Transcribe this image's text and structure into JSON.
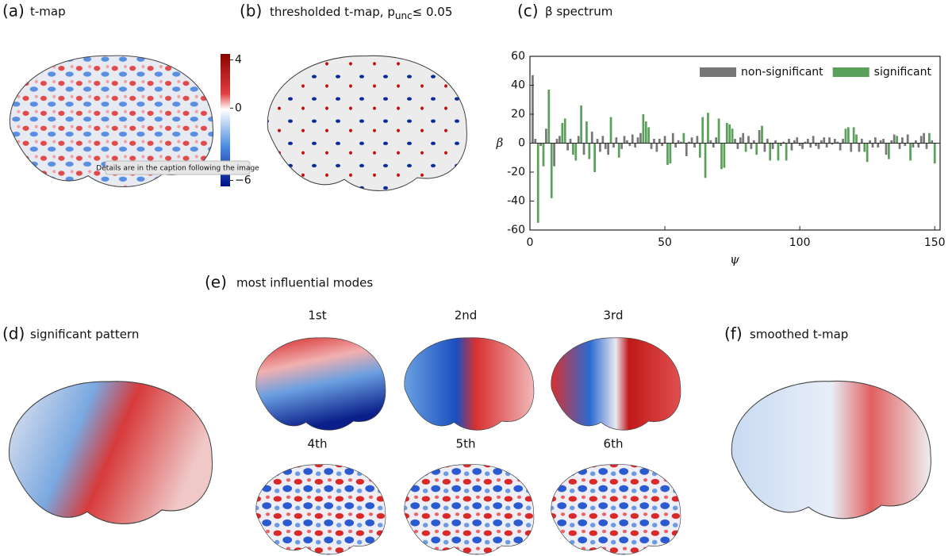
{
  "panels": {
    "a": {
      "label": "(a)",
      "title": "t-map",
      "clim": [
        -6.5,
        4.5
      ],
      "colorbar_ticks": [
        4,
        0,
        {
          "value": -6,
          "label": "−6"
        }
      ],
      "tooltip": "Details are in the caption following the image"
    },
    "b": {
      "label": "(b)",
      "title": "thresholded t-map, p",
      "title_sub": "unc",
      "title_rest": "≤ 0.05"
    },
    "d": {
      "label": "(d)",
      "title": "significant pattern"
    },
    "e": {
      "label": "(e)",
      "title": "most influential modes",
      "modes": [
        "1st",
        "2nd",
        "3rd",
        "4th",
        "5th",
        "6th"
      ]
    },
    "f": {
      "label": "(f)",
      "title": "smoothed t-map"
    }
  },
  "chart_data": {
    "type": "bar",
    "panel_label": "(c)",
    "title": "β spectrum",
    "x_label": "ψ",
    "y_label": "β",
    "xlim": [
      0,
      152
    ],
    "ylim": [
      -60,
      60
    ],
    "xticks": [
      0,
      50,
      100,
      150
    ],
    "yticks": [
      -60,
      -40,
      -20,
      0,
      20,
      40,
      60
    ],
    "legend": "upper right",
    "x": [
      1,
      2,
      3,
      4,
      5,
      6,
      7,
      8,
      9,
      10,
      11,
      12,
      13,
      14,
      15,
      16,
      17,
      18,
      19,
      20,
      21,
      22,
      23,
      24,
      25,
      26,
      27,
      28,
      29,
      30,
      31,
      32,
      33,
      34,
      35,
      36,
      37,
      38,
      39,
      40,
      41,
      42,
      43,
      44,
      45,
      46,
      47,
      48,
      49,
      50,
      51,
      52,
      53,
      54,
      55,
      56,
      57,
      58,
      59,
      60,
      61,
      62,
      63,
      64,
      65,
      66,
      67,
      68,
      69,
      70,
      71,
      72,
      73,
      74,
      75,
      76,
      77,
      78,
      79,
      80,
      81,
      82,
      83,
      84,
      85,
      86,
      87,
      88,
      89,
      90,
      91,
      92,
      93,
      94,
      95,
      96,
      97,
      98,
      99,
      100,
      101,
      102,
      103,
      104,
      105,
      106,
      107,
      108,
      109,
      110,
      111,
      112,
      113,
      114,
      115,
      116,
      117,
      118,
      119,
      120,
      121,
      122,
      123,
      124,
      125,
      126,
      127,
      128,
      129,
      130,
      131,
      132,
      133,
      134,
      135,
      136,
      137,
      138,
      139,
      140,
      141,
      142,
      143,
      144,
      145,
      146,
      147,
      148,
      149,
      150
    ],
    "series": [
      {
        "name": "non-significant",
        "color": "#777777",
        "values": [
          47,
          3,
          null,
          -2,
          null,
          10,
          null,
          null,
          -16,
          3,
          5,
          null,
          null,
          -5,
          3,
          null,
          null,
          5,
          null,
          -8,
          null,
          null,
          8,
          null,
          3,
          -6,
          5,
          -4,
          -8,
          null,
          -3,
          4,
          null,
          -4,
          5,
          2,
          -2,
          6,
          -3,
          4,
          7,
          null,
          null,
          null,
          -4,
          3,
          -6,
          3,
          -2,
          5,
          null,
          null,
          7,
          -3,
          2,
          1,
          null,
          -9,
          1,
          4,
          -3,
          5,
          null,
          null,
          null,
          null,
          2,
          -3,
          4,
          null,
          null,
          null,
          null,
          null,
          null,
          3,
          -4,
          4,
          7,
          null,
          5,
          -4,
          2,
          null,
          9,
          null,
          -6,
          3,
          null,
          -4,
          2,
          null,
          -2,
          1,
          null,
          3,
          -5,
          2,
          4,
          -2,
          -4,
          1,
          3,
          -3,
          5,
          -2,
          -4,
          2,
          4,
          -3,
          4,
          -1,
          3,
          1,
          -5,
          3,
          null,
          null,
          -6,
          null,
          null,
          -6,
          3,
          null,
          null,
          2,
          -3,
          4,
          -3,
          2,
          3,
          -8,
          null,
          2,
          6,
          null,
          -4,
          4,
          -2,
          6,
          null,
          -3,
          2,
          -3,
          5,
          7,
          -4,
          null,
          2,
          null
        ]
      },
      {
        "name": "significant",
        "color": "#5aa05a",
        "values": [
          null,
          null,
          -55,
          null,
          -16,
          null,
          37,
          -38,
          null,
          null,
          null,
          14,
          17,
          null,
          null,
          -8,
          -12,
          null,
          26,
          null,
          15,
          -11,
          null,
          -20,
          null,
          null,
          null,
          null,
          null,
          18,
          null,
          null,
          -10,
          null,
          null,
          null,
          null,
          null,
          null,
          null,
          null,
          20,
          15,
          11,
          null,
          null,
          null,
          null,
          null,
          null,
          -15,
          -14,
          null,
          null,
          null,
          null,
          7,
          null,
          null,
          null,
          null,
          null,
          -10,
          18,
          -24,
          21,
          null,
          null,
          null,
          17,
          -18,
          -17,
          14,
          13,
          10,
          null,
          null,
          null,
          null,
          -6,
          null,
          null,
          null,
          -8,
          null,
          12,
          null,
          null,
          -12,
          null,
          null,
          -12,
          null,
          null,
          -12,
          null,
          null,
          null,
          null,
          null,
          null,
          null,
          null,
          null,
          null,
          null,
          null,
          null,
          null,
          null,
          null,
          null,
          null,
          null,
          null,
          null,
          10,
          11,
          null,
          11,
          6,
          null,
          null,
          -6,
          -13,
          null,
          null,
          null,
          null,
          null,
          null,
          null,
          -11,
          null,
          null,
          5,
          null,
          null,
          null,
          null,
          -12,
          null,
          null,
          null,
          null,
          null,
          null,
          7,
          null,
          -14
        ]
      }
    ]
  }
}
